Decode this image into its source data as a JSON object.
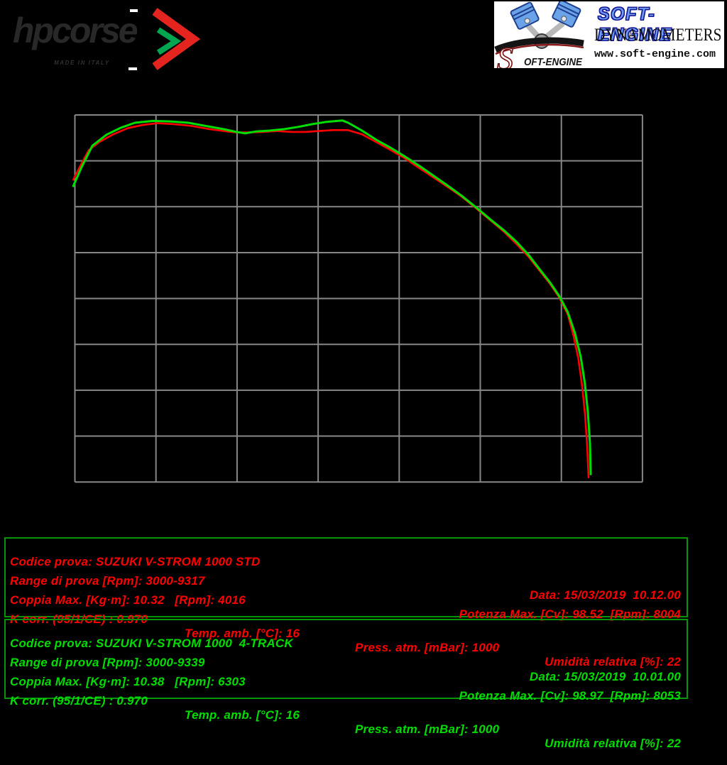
{
  "colors": {
    "background": "#000000",
    "grid": "#878787",
    "box_border": "#089408",
    "std_red": "#ff0000",
    "track4_green": "#00dd00"
  },
  "logos": {
    "hpcorse": {
      "name": "hpcorse",
      "tagline": "MADE IN ITALY"
    },
    "softengine": {
      "s_initial": "S",
      "script_rest": "OFT-ENGINE",
      "title": "SOFT-ENGINE",
      "subtitle": "DYNAMOMETERS",
      "url": "www.soft-engine.com"
    }
  },
  "chart_data": {
    "type": "line",
    "title": "",
    "xlabel": "",
    "ylabel": "",
    "axis_tick_labels_visible": false,
    "grid": true,
    "legend_position": "none",
    "x_range": [
      3000,
      10000
    ],
    "x_gridline_step": 1000,
    "y_range": [
      2.5,
      10.5
    ],
    "y_gridline_step": 1,
    "series": [
      {
        "name": "SUZUKI V-STROM 1000 STD",
        "color": "#ff0000",
        "points": [
          [
            2980,
            9.09
          ],
          [
            3060,
            9.37
          ],
          [
            3170,
            9.73
          ],
          [
            3300,
            9.91
          ],
          [
            3475,
            10.08
          ],
          [
            3650,
            10.21
          ],
          [
            3830,
            10.28
          ],
          [
            4016,
            10.32
          ],
          [
            4220,
            10.3
          ],
          [
            4440,
            10.26
          ],
          [
            4660,
            10.19
          ],
          [
            4880,
            10.14
          ],
          [
            4990,
            10.12
          ],
          [
            5140,
            10.12
          ],
          [
            5320,
            10.13
          ],
          [
            5490,
            10.15
          ],
          [
            5670,
            10.13
          ],
          [
            5840,
            10.13
          ],
          [
            6015,
            10.15
          ],
          [
            6190,
            10.17
          ],
          [
            6365,
            10.17
          ],
          [
            6540,
            10.08
          ],
          [
            6715,
            9.91
          ],
          [
            6890,
            9.74
          ],
          [
            7065,
            9.56
          ],
          [
            7240,
            9.35
          ],
          [
            7420,
            9.14
          ],
          [
            7590,
            8.94
          ],
          [
            7770,
            8.72
          ],
          [
            7945,
            8.47
          ],
          [
            8120,
            8.21
          ],
          [
            8295,
            7.95
          ],
          [
            8450,
            7.68
          ],
          [
            8600,
            7.4
          ],
          [
            8730,
            7.11
          ],
          [
            8860,
            6.82
          ],
          [
            8975,
            6.52
          ],
          [
            9080,
            6.15
          ],
          [
            9150,
            5.69
          ],
          [
            9210,
            5.18
          ],
          [
            9256,
            4.6
          ],
          [
            9292,
            3.98
          ],
          [
            9318,
            3.29
          ],
          [
            9335,
            2.6
          ]
        ]
      },
      {
        "name": "SUZUKI V-STROM 1000 4-TRACK",
        "color": "#00dd00",
        "points": [
          [
            2980,
            8.95
          ],
          [
            3080,
            9.35
          ],
          [
            3215,
            9.83
          ],
          [
            3390,
            10.07
          ],
          [
            3565,
            10.22
          ],
          [
            3740,
            10.33
          ],
          [
            3960,
            10.37
          ],
          [
            4180,
            10.36
          ],
          [
            4400,
            10.33
          ],
          [
            4615,
            10.26
          ],
          [
            4835,
            10.19
          ],
          [
            4990,
            10.13
          ],
          [
            5100,
            10.1
          ],
          [
            5230,
            10.14
          ],
          [
            5405,
            10.16
          ],
          [
            5580,
            10.19
          ],
          [
            5755,
            10.24
          ],
          [
            5930,
            10.3
          ],
          [
            6105,
            10.35
          ],
          [
            6300,
            10.38
          ],
          [
            6370,
            10.33
          ],
          [
            6540,
            10.16
          ],
          [
            6715,
            9.96
          ],
          [
            6890,
            9.79
          ],
          [
            7065,
            9.6
          ],
          [
            7240,
            9.4
          ],
          [
            7420,
            9.18
          ],
          [
            7590,
            8.97
          ],
          [
            7770,
            8.74
          ],
          [
            7945,
            8.49
          ],
          [
            8120,
            8.23
          ],
          [
            8295,
            7.98
          ],
          [
            8450,
            7.73
          ],
          [
            8600,
            7.44
          ],
          [
            8730,
            7.14
          ],
          [
            8860,
            6.85
          ],
          [
            8975,
            6.55
          ],
          [
            9080,
            6.2
          ],
          [
            9170,
            5.73
          ],
          [
            9240,
            5.22
          ],
          [
            9290,
            4.65
          ],
          [
            9327,
            4.03
          ],
          [
            9353,
            3.34
          ],
          [
            9362,
            2.67
          ]
        ]
      }
    ]
  },
  "blocks": [
    {
      "text_color": "#ff0000",
      "codice": "Codice prova: SUZUKI V-STROM 1000 STD",
      "range": "Range di prova [Rpm]: 3000-9317",
      "date_time": "Data: 15/03/2019  10.12.00",
      "coppia": "Coppia Max. [Kg·m]: 10.32   [Rpm]: 4016",
      "potenza": "Potenza Max. [Cv]: 98.52  [Rpm]: 8004",
      "kcorr": "K corr. (95/1/CE) : 0.970",
      "temp": "Temp. amb. [°C]: 16",
      "press": "Press. atm. [mBar]: 1000",
      "umidita": "Umidità relativa [%]: 22"
    },
    {
      "text_color": "#00dd00",
      "codice": "Codice prova: SUZUKI V-STROM 1000  4-TRACK",
      "range": "Range di prova [Rpm]: 3000-9339",
      "date_time": "Data: 15/03/2019  10.01.00",
      "coppia": "Coppia Max. [Kg·m]: 10.38   [Rpm]: 6303",
      "potenza": "Potenza Max. [Cv]: 98.97  [Rpm]: 8053",
      "kcorr": "K corr. (95/1/CE) : 0.970",
      "temp": "Temp. amb. [°C]: 16",
      "press": "Press. atm. [mBar]: 1000",
      "umidita": "Umidità relativa [%]: 22"
    }
  ]
}
